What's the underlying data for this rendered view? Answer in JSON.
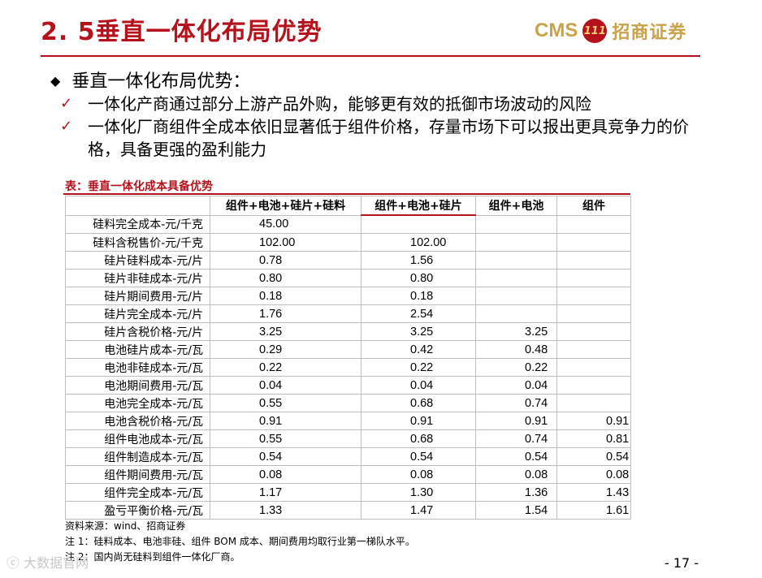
{
  "header": {
    "title": "2. 5垂直一体化布局优势",
    "logo_latin": "CMS",
    "logo_emblem": "111",
    "logo_cn": "招商证券"
  },
  "heading": {
    "bullet": "◆",
    "text": "垂直一体化布局优势："
  },
  "points": [
    {
      "mark": "✓",
      "text": "一体化产商通过部分上游产品外购，能够更有效的抵御市场波动的风险"
    },
    {
      "mark": "✓",
      "text": "一体化厂商组件全成本依旧显著低于组件价格，存量市场下可以报出更具竞争力的价格，具备更强的盈利能力"
    }
  ],
  "table": {
    "caption": "表：垂直一体化成本具备优势",
    "columns": [
      "",
      "组件+电池+硅片+硅料",
      "组件+电池+硅片",
      "组件+电池",
      "组件"
    ],
    "rows": [
      [
        "硅料完全成本-元/千克",
        "45.00",
        "",
        "",
        ""
      ],
      [
        "硅料含税售价-元/千克",
        "102.00",
        "102.00",
        "",
        ""
      ],
      [
        "硅片硅料成本-元/片",
        "0.78",
        "1.56",
        "",
        ""
      ],
      [
        "硅片非硅成本-元/片",
        "0.80",
        "0.80",
        "",
        ""
      ],
      [
        "硅片期间费用-元/片",
        "0.18",
        "0.18",
        "",
        ""
      ],
      [
        "硅片完全成本-元/片",
        "1.76",
        "2.54",
        "",
        ""
      ],
      [
        "硅片含税价格-元/片",
        "3.25",
        "3.25",
        "3.25",
        ""
      ],
      [
        "电池硅片成本-元/瓦",
        "0.29",
        "0.42",
        "0.48",
        ""
      ],
      [
        "电池非硅成本-元/瓦",
        "0.22",
        "0.22",
        "0.22",
        ""
      ],
      [
        "电池期间费用-元/瓦",
        "0.04",
        "0.04",
        "0.04",
        ""
      ],
      [
        "电池完全成本-元/瓦",
        "0.55",
        "0.68",
        "0.74",
        ""
      ],
      [
        "电池含税价格-元/瓦",
        "0.91",
        "0.91",
        "0.91",
        "0.91"
      ],
      [
        "组件电池成本-元/瓦",
        "0.55",
        "0.68",
        "0.74",
        "0.81"
      ],
      [
        "组件制造成本-元/瓦",
        "0.54",
        "0.54",
        "0.54",
        "0.54"
      ],
      [
        "组件期间费用-元/瓦",
        "0.08",
        "0.08",
        "0.08",
        "0.08"
      ],
      [
        "组件完全成本-元/瓦",
        "1.17",
        "1.30",
        "1.36",
        "1.43"
      ],
      [
        "盈亏平衡价格-元/瓦",
        "1.33",
        "1.47",
        "1.54",
        "1.61"
      ]
    ]
  },
  "notes": [
    "资料来源：wind、招商证券",
    "注 1：硅料成本、电池非硅、组件 BOM 成本、期间费用均取行业第一梯队水平。",
    "注 2：国内尚无硅料到组件一体化厂商。"
  ],
  "page_number": "- 17 -",
  "watermark": "大数据官网"
}
